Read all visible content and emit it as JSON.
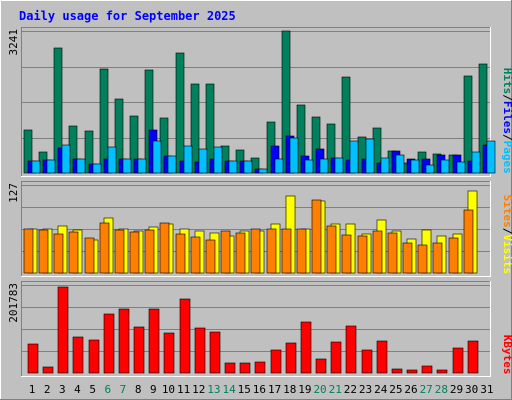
{
  "chart_data": [
    {
      "type": "bar",
      "title": "Daily usage for September 2025",
      "panel": "hits-files-pages",
      "ymax_label": "3241",
      "ylim": [
        0,
        3241
      ],
      "categories": [
        "1",
        "2",
        "3",
        "4",
        "5",
        "6",
        "7",
        "8",
        "9",
        "10",
        "11",
        "12",
        "13",
        "14",
        "15",
        "16",
        "17",
        "18",
        "19",
        "20",
        "21",
        "22",
        "23",
        "24",
        "25",
        "26",
        "27",
        "28",
        "29",
        "30",
        "31"
      ],
      "weekend_days": [
        "6",
        "7",
        "13",
        "14",
        "20",
        "21",
        "27",
        "28"
      ],
      "grid": true,
      "series": [
        {
          "name": "Hits",
          "color": "#00805c",
          "values": [
            980,
            480,
            2850,
            1070,
            970,
            2380,
            1690,
            1290,
            2340,
            1250,
            2740,
            2040,
            2040,
            610,
            520,
            350,
            1160,
            3241,
            1550,
            1270,
            1110,
            2200,
            830,
            1020,
            500,
            220,
            470,
            430,
            420,
            2210,
            2480
          ]
        },
        {
          "name": "Files",
          "color": "#0000ff",
          "values": [
            280,
            300,
            580,
            320,
            210,
            310,
            320,
            320,
            990,
            380,
            280,
            260,
            310,
            280,
            270,
            90,
            620,
            850,
            390,
            540,
            350,
            300,
            320,
            230,
            510,
            330,
            330,
            400,
            420,
            270,
            650
          ]
        },
        {
          "name": "Pages",
          "color": "#00c0ff",
          "values": [
            280,
            300,
            630,
            320,
            210,
            600,
            320,
            320,
            740,
            380,
            610,
            550,
            600,
            280,
            270,
            90,
            310,
            810,
            300,
            310,
            350,
            740,
            780,
            350,
            420,
            300,
            190,
            290,
            250,
            480,
            740
          ]
        }
      ],
      "legend": [
        "Hits",
        "/",
        "Files",
        "/",
        "Pages"
      ]
    },
    {
      "type": "bar",
      "panel": "visits-sites",
      "ymax_label": "127",
      "ylim": [
        0,
        127
      ],
      "categories": [
        "1",
        "2",
        "3",
        "4",
        "5",
        "6",
        "7",
        "8",
        "9",
        "10",
        "11",
        "12",
        "13",
        "14",
        "15",
        "16",
        "17",
        "18",
        "19",
        "20",
        "21",
        "22",
        "23",
        "24",
        "25",
        "26",
        "27",
        "28",
        "29",
        "30",
        "31"
      ],
      "grid": true,
      "series": [
        {
          "name": "Visits",
          "color": "#ffff00",
          "values": [
            64,
            64,
            68,
            62,
            47,
            79,
            64,
            61,
            67,
            71,
            63,
            61,
            58,
            54,
            60,
            61,
            71,
            111,
            64,
            104,
            71,
            71,
            57,
            77,
            61,
            49,
            62,
            54,
            57,
            119,
            0
          ]
        },
        {
          "name": "Sites",
          "color": "#ff8000",
          "values": [
            63,
            62,
            57,
            59,
            50,
            72,
            62,
            59,
            62,
            72,
            56,
            52,
            47,
            60,
            58,
            64,
            64,
            63,
            64,
            105,
            68,
            55,
            54,
            60,
            58,
            43,
            40,
            43,
            50,
            91,
            0
          ]
        }
      ],
      "legend": [
        "Sites",
        "/",
        "Visits"
      ]
    },
    {
      "type": "bar",
      "panel": "kbytes",
      "ymax_label": "201783",
      "ylim": [
        0,
        201783
      ],
      "categories": [
        "1",
        "2",
        "3",
        "4",
        "5",
        "6",
        "7",
        "8",
        "9",
        "10",
        "11",
        "12",
        "13",
        "14",
        "15",
        "16",
        "17",
        "18",
        "19",
        "20",
        "21",
        "22",
        "23",
        "24",
        "25",
        "26",
        "27",
        "28",
        "29",
        "30",
        "31"
      ],
      "grid": true,
      "series": [
        {
          "name": "KBytes",
          "color": "#ff0000",
          "values": [
            67000,
            14000,
            198000,
            82000,
            75000,
            135000,
            146000,
            106000,
            146000,
            91000,
            169000,
            103000,
            95000,
            22000,
            22000,
            26000,
            52000,
            69000,
            117000,
            31000,
            71000,
            108000,
            53000,
            73000,
            10000,
            8000,
            17000,
            8000,
            57000,
            73000,
            0
          ]
        }
      ],
      "legend": [
        "KBytes"
      ]
    }
  ]
}
